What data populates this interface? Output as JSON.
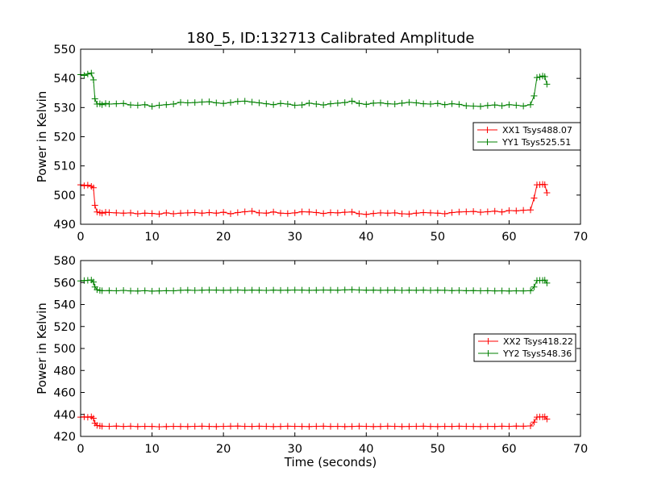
{
  "chart_data": {
    "type": "line",
    "title": "180_5, ID:132713 Calibrated Amplitude",
    "xlabel": "Time (seconds)",
    "panels": [
      {
        "ylabel": "Power in Kelvin",
        "xlim": [
          0,
          70
        ],
        "ylim": [
          490,
          550
        ],
        "xticks": [
          "0",
          "10",
          "20",
          "30",
          "40",
          "50",
          "60",
          "70"
        ],
        "yticks": [
          "490",
          "500",
          "510",
          "520",
          "530",
          "540",
          "550"
        ],
        "legend_position": "center-right",
        "series": [
          {
            "name": "XX1 Tsys488.07",
            "color": "#ff0000",
            "x": [
              0,
              0.5,
              1.0,
              1.5,
              1.8,
              2.0,
              2.3,
              2.7,
              3,
              3.5,
              4,
              5,
              6,
              7,
              8,
              9,
              10,
              11,
              12,
              13,
              14,
              15,
              16,
              17,
              18,
              19,
              20,
              21,
              22,
              23,
              24,
              25,
              26,
              27,
              28,
              29,
              30,
              31,
              32,
              33,
              34,
              35,
              36,
              37,
              38,
              39,
              40,
              41,
              42,
              43,
              44,
              45,
              46,
              47,
              48,
              49,
              50,
              51,
              52,
              53,
              54,
              55,
              56,
              57,
              58,
              59,
              60,
              61,
              62,
              63,
              63.5,
              63.9,
              64.3,
              64.7,
              65.0,
              65.3
            ],
            "y": [
              503.5,
              503.2,
              503.4,
              503.0,
              502.5,
              496.5,
              494.2,
              494.0,
              493.8,
              494.1,
              494.0,
              493.9,
              493.8,
              493.9,
              493.6,
              493.8,
              493.7,
              493.5,
              493.9,
              493.6,
              493.8,
              493.9,
              494.0,
              493.8,
              494.0,
              493.8,
              494.1,
              493.6,
              494.0,
              494.3,
              494.5,
              493.9,
              493.8,
              494.2,
              493.8,
              493.7,
              493.9,
              494.3,
              494.2,
              494.0,
              493.7,
              494.0,
              493.9,
              494.1,
              494.2,
              493.6,
              493.4,
              493.7,
              493.9,
              493.8,
              493.9,
              493.6,
              493.5,
              493.8,
              494.0,
              493.9,
              493.8,
              493.6,
              494.0,
              494.2,
              494.3,
              494.4,
              494.1,
              494.3,
              494.5,
              494.2,
              494.7,
              494.6,
              494.8,
              494.9,
              499.0,
              503.5,
              503.6,
              503.7,
              503.6,
              500.8
            ]
          },
          {
            "name": "YY1 Tsys525.51",
            "color": "#008000",
            "x": [
              0,
              0.5,
              1.0,
              1.5,
              1.8,
              2.0,
              2.3,
              2.7,
              3,
              3.5,
              4,
              5,
              6,
              7,
              8,
              9,
              10,
              11,
              12,
              13,
              14,
              15,
              16,
              17,
              18,
              19,
              20,
              21,
              22,
              23,
              24,
              25,
              26,
              27,
              28,
              29,
              30,
              31,
              32,
              33,
              34,
              35,
              36,
              37,
              38,
              39,
              40,
              41,
              42,
              43,
              44,
              45,
              46,
              47,
              48,
              49,
              50,
              51,
              52,
              53,
              54,
              55,
              56,
              57,
              58,
              59,
              60,
              61,
              62,
              63,
              63.5,
              63.9,
              64.3,
              64.7,
              65.0,
              65.3
            ],
            "y": [
              541.3,
              541.0,
              541.5,
              541.8,
              539.5,
              533.0,
              531.2,
              531.3,
              531.0,
              531.4,
              531.2,
              531.3,
              531.4,
              530.9,
              530.8,
              531.0,
              530.4,
              530.8,
              531.0,
              531.2,
              531.8,
              531.6,
              531.7,
              531.9,
              532.0,
              531.6,
              531.4,
              531.7,
              532.1,
              532.2,
              531.9,
              531.6,
              531.3,
              531.0,
              531.4,
              531.2,
              530.8,
              530.9,
              531.5,
              531.2,
              530.9,
              531.3,
              531.5,
              531.7,
              532.2,
              531.4,
              531.1,
              531.5,
              531.6,
              531.3,
              531.2,
              531.5,
              531.8,
              531.6,
              531.3,
              531.2,
              531.4,
              531.0,
              531.3,
              531.1,
              530.6,
              530.5,
              530.4,
              530.7,
              530.9,
              530.6,
              531.0,
              530.8,
              530.5,
              531.0,
              534.0,
              540.3,
              540.5,
              540.8,
              540.6,
              538.0
            ]
          }
        ]
      },
      {
        "ylabel": "Power in Kelvin",
        "xlim": [
          0,
          70
        ],
        "ylim": [
          420,
          580
        ],
        "xticks": [
          "0",
          "10",
          "20",
          "30",
          "40",
          "50",
          "60",
          "70"
        ],
        "yticks": [
          "420",
          "440",
          "460",
          "480",
          "500",
          "520",
          "540",
          "560",
          "580"
        ],
        "legend_position": "center-right",
        "series": [
          {
            "name": "XX2 Tsys418.22",
            "color": "#ff0000",
            "x": [
              0,
              0.5,
              1.0,
              1.5,
              1.8,
              2.0,
              2.3,
              2.7,
              3,
              4,
              5,
              6,
              7,
              8,
              9,
              10,
              11,
              12,
              13,
              14,
              15,
              16,
              17,
              18,
              19,
              20,
              21,
              22,
              23,
              24,
              25,
              26,
              27,
              28,
              29,
              30,
              31,
              32,
              33,
              34,
              35,
              36,
              37,
              38,
              39,
              40,
              41,
              42,
              43,
              44,
              45,
              46,
              47,
              48,
              49,
              50,
              51,
              52,
              53,
              54,
              55,
              56,
              57,
              58,
              59,
              60,
              61,
              62,
              63,
              63.5,
              63.9,
              64.3,
              64.7,
              65.0,
              65.3
            ],
            "y": [
              437.5,
              437.8,
              437.4,
              437.9,
              436.5,
              432.0,
              430.0,
              429.5,
              429.3,
              429.2,
              429.4,
              429.1,
              429.3,
              429.0,
              429.2,
              429.1,
              428.8,
              429.0,
              429.2,
              429.1,
              429.0,
              429.2,
              429.3,
              429.1,
              429.0,
              429.2,
              429.3,
              429.4,
              429.2,
              429.1,
              429.3,
              429.2,
              429.0,
              429.1,
              429.3,
              429.2,
              429.1,
              429.0,
              429.2,
              429.3,
              429.1,
              429.2,
              429.0,
              429.1,
              429.3,
              429.2,
              429.0,
              429.1,
              429.3,
              429.2,
              429.0,
              429.1,
              429.2,
              429.3,
              429.1,
              429.0,
              429.2,
              429.1,
              429.3,
              429.2,
              429.1,
              429.0,
              429.2,
              429.1,
              429.3,
              429.2,
              429.4,
              429.3,
              429.5,
              433.0,
              437.5,
              437.8,
              437.6,
              437.9,
              435.8
            ]
          },
          {
            "name": "YY2 Tsys548.36",
            "color": "#008000",
            "x": [
              0,
              0.5,
              1.0,
              1.5,
              1.8,
              2.0,
              2.3,
              2.7,
              3,
              4,
              5,
              6,
              7,
              8,
              9,
              10,
              11,
              12,
              13,
              14,
              15,
              16,
              17,
              18,
              19,
              20,
              21,
              22,
              23,
              24,
              25,
              26,
              27,
              28,
              29,
              30,
              31,
              32,
              33,
              34,
              35,
              36,
              37,
              38,
              39,
              40,
              41,
              42,
              43,
              44,
              45,
              46,
              47,
              48,
              49,
              50,
              51,
              52,
              53,
              54,
              55,
              56,
              57,
              58,
              59,
              60,
              61,
              62,
              63,
              63.5,
              63.9,
              64.3,
              64.7,
              65.0,
              65.3
            ],
            "y": [
              561.5,
              561.8,
              562.0,
              562.3,
              560.5,
              556.0,
              553.5,
              552.8,
              552.6,
              552.7,
              552.5,
              552.8,
              552.4,
              552.3,
              552.6,
              552.2,
              552.4,
              552.6,
              552.5,
              552.9,
              553.1,
              552.8,
              553.0,
              553.2,
              553.1,
              552.9,
              553.0,
              553.2,
              552.9,
              553.1,
              553.0,
              552.8,
              553.1,
              552.9,
              553.0,
              553.2,
              553.1,
              552.9,
              553.0,
              553.2,
              553.1,
              553.0,
              553.3,
              553.5,
              553.2,
              553.0,
              553.1,
              552.9,
              553.0,
              553.1,
              552.8,
              553.0,
              552.9,
              553.1,
              552.8,
              553.0,
              552.9,
              552.7,
              552.8,
              552.6,
              552.7,
              552.5,
              552.6,
              552.4,
              552.5,
              552.3,
              552.5,
              552.4,
              552.6,
              556.0,
              561.8,
              562.0,
              561.9,
              562.2,
              559.5
            ]
          }
        ]
      }
    ]
  }
}
